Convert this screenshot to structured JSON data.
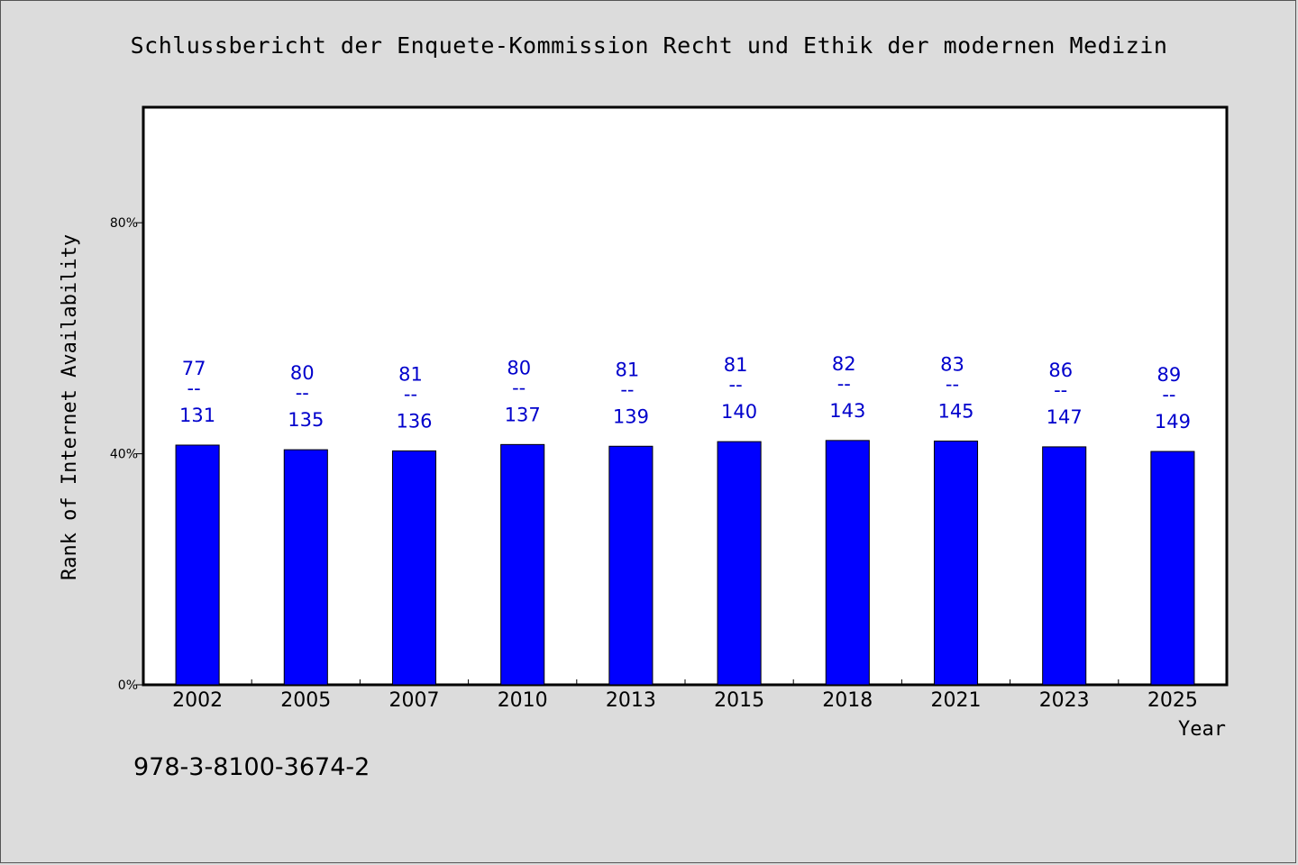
{
  "chart_data": {
    "type": "bar",
    "title": "Schlussbericht der Enquete-Kommission Recht und Ethik der modernen Medizin",
    "xlabel": "Year",
    "ylabel": "Rank of Internet Availability",
    "categories": [
      "2002",
      "2005",
      "2007",
      "2010",
      "2013",
      "2015",
      "2018",
      "2021",
      "2023",
      "2025"
    ],
    "values": [
      41.5,
      40.7,
      40.5,
      41.6,
      41.3,
      42.1,
      42.3,
      42.2,
      41.2,
      40.4
    ],
    "data_labels": [
      {
        "rank": "77",
        "total": "131"
      },
      {
        "rank": "80",
        "total": "135"
      },
      {
        "rank": "81",
        "total": "136"
      },
      {
        "rank": "80",
        "total": "137"
      },
      {
        "rank": "81",
        "total": "139"
      },
      {
        "rank": "81",
        "total": "140"
      },
      {
        "rank": "82",
        "total": "143"
      },
      {
        "rank": "83",
        "total": "145"
      },
      {
        "rank": "86",
        "total": "147"
      },
      {
        "rank": "89",
        "total": "149"
      }
    ],
    "label_separator": "--",
    "ylim": [
      0,
      100
    ],
    "yticks": [
      0,
      40,
      80
    ],
    "ytick_labels": [
      "0%",
      "40%",
      "80%"
    ],
    "grid": false,
    "bar_color": "#0000ff",
    "label_color": "#0000cc"
  },
  "footer": {
    "isbn": "978-3-8100-3674-2"
  }
}
